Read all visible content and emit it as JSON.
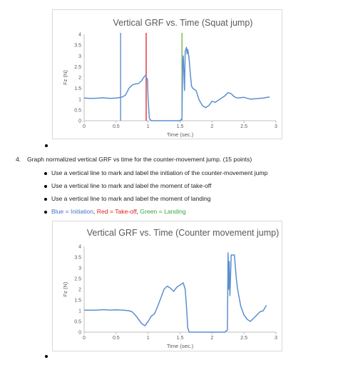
{
  "chart_data": [
    {
      "type": "line",
      "title": "Vertical GRF vs. Time (Squat jump)",
      "xlabel": "Time (sec.)",
      "ylabel": "Fz (N)",
      "xlim": [
        0,
        3
      ],
      "ylim": [
        0,
        4
      ],
      "xticks": [
        "0",
        "0.5",
        "1",
        "1.5",
        "2",
        "2.5",
        "3"
      ],
      "yticks": [
        "0",
        "0.5",
        "1",
        "1.5",
        "2",
        "2.5",
        "3",
        "3.5",
        "4"
      ],
      "grid": false,
      "series_color": "#5b8fd0",
      "x": [
        0,
        0.1,
        0.2,
        0.3,
        0.4,
        0.5,
        0.55,
        0.6,
        0.65,
        0.7,
        0.75,
        0.8,
        0.85,
        0.9,
        0.93,
        0.96,
        0.99,
        1.0,
        1.02,
        1.05,
        1.2,
        1.4,
        1.5,
        1.53,
        1.54,
        1.55,
        1.57,
        1.58,
        1.6,
        1.61,
        1.62,
        1.64,
        1.66,
        1.68,
        1.7,
        1.75,
        1.8,
        1.85,
        1.9,
        1.95,
        2.0,
        2.05,
        2.1,
        2.15,
        2.2,
        2.25,
        2.3,
        2.35,
        2.4,
        2.5,
        2.6,
        2.7,
        2.8,
        2.9
      ],
      "y": [
        1.05,
        1.03,
        1.04,
        1.06,
        1.03,
        1.05,
        1.07,
        1.1,
        1.2,
        1.5,
        1.65,
        1.7,
        1.72,
        1.85,
        2.0,
        2.1,
        1.9,
        1.0,
        0.1,
        0,
        0,
        0,
        0,
        0.1,
        2.6,
        3.0,
        1.4,
        3.2,
        3.4,
        3.1,
        3.3,
        2.9,
        2.2,
        1.6,
        1.5,
        1.4,
        0.95,
        0.7,
        0.6,
        0.7,
        0.9,
        0.85,
        0.95,
        1.05,
        1.15,
        1.3,
        1.25,
        1.1,
        1.05,
        1.08,
        1.0,
        1.02,
        1.05,
        1.1
      ],
      "vertical_lines": [
        {
          "x": 0.57,
          "color": "#4f86c6"
        },
        {
          "x": 0.97,
          "color": "#e02020"
        },
        {
          "x": 1.53,
          "color": "#70ad47"
        }
      ]
    },
    {
      "type": "line",
      "title": "Vertical GRF vs. Time (Counter movement jump)",
      "xlabel": "Time (sec.)",
      "ylabel": "Fz (N)",
      "xlim": [
        0,
        3
      ],
      "ylim": [
        0,
        4
      ],
      "xticks": [
        "0",
        "0.5",
        "1",
        "1.5",
        "2",
        "2.5",
        "3"
      ],
      "yticks": [
        "0",
        "0.5",
        "1",
        "1.5",
        "2",
        "2.5",
        "3",
        "3.5",
        "4"
      ],
      "grid": false,
      "series_color": "#5b8fd0",
      "x": [
        0,
        0.1,
        0.2,
        0.3,
        0.4,
        0.5,
        0.6,
        0.7,
        0.75,
        0.8,
        0.85,
        0.9,
        0.95,
        1.0,
        1.05,
        1.1,
        1.15,
        1.2,
        1.25,
        1.3,
        1.35,
        1.4,
        1.45,
        1.5,
        1.55,
        1.58,
        1.6,
        1.62,
        1.64,
        1.65,
        1.67,
        1.8,
        2.0,
        2.2,
        2.24,
        2.25,
        2.26,
        2.27,
        2.28,
        2.29,
        2.3,
        2.31,
        2.35,
        2.38,
        2.4,
        2.45,
        2.5,
        2.55,
        2.6,
        2.65,
        2.7,
        2.75,
        2.8,
        2.85
      ],
      "y": [
        1.03,
        1.02,
        1.03,
        1.05,
        1.03,
        1.04,
        1.03,
        1.0,
        0.95,
        0.8,
        0.6,
        0.4,
        0.3,
        0.5,
        0.75,
        0.85,
        1.2,
        1.6,
        2.0,
        2.15,
        2.05,
        1.9,
        2.1,
        2.2,
        2.3,
        2.0,
        1.2,
        0.2,
        0.02,
        0,
        0,
        0,
        0,
        0,
        0.1,
        3.7,
        2.0,
        3.3,
        1.7,
        2.6,
        3.6,
        3.6,
        3.6,
        2.5,
        2.0,
        1.2,
        0.8,
        0.6,
        0.5,
        0.65,
        0.8,
        0.95,
        1.0,
        1.25
      ],
      "vertical_lines": []
    }
  ],
  "question": {
    "number": "4.",
    "text": "Graph normalized vertical GRF vs time for the counter-movement jump. (15 points)",
    "items": [
      "Use a vertical line to mark and label the initiation of the counter-movement jump",
      "Use a vertical line to mark and label the moment of take-off",
      "Use a vertical line to mark and label the moment of landing"
    ],
    "legend": {
      "blue": "Blue = Initiation",
      "sep1": ", ",
      "red": "Red = Take-off",
      "sep2": ", ",
      "green": "Green = Landing"
    }
  },
  "colors": {
    "blue_text": "#4472c4",
    "red_text": "#e02020",
    "green_text": "#3aa63a"
  }
}
